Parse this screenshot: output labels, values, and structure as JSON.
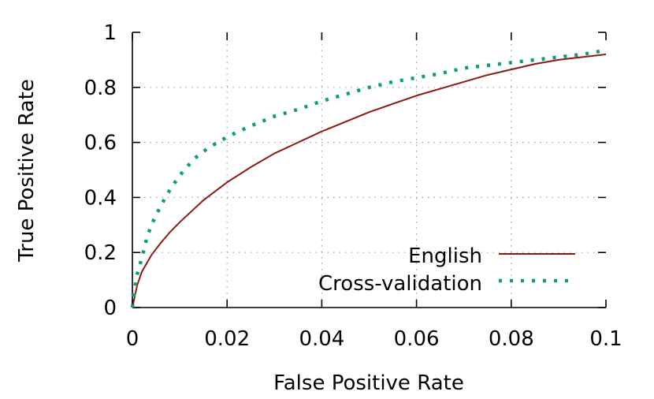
{
  "chart_data": {
    "type": "line",
    "title": "",
    "xlabel": "False Positive Rate",
    "ylabel": "True Positive Rate",
    "xlim": [
      0,
      0.1
    ],
    "ylim": [
      0,
      1
    ],
    "xticks": [
      "0",
      "0.02",
      "0.04",
      "0.06",
      "0.08",
      "0.1"
    ],
    "yticks": [
      "0",
      "0.2",
      "0.4",
      "0.6",
      "0.8",
      "1"
    ],
    "grid": true,
    "legend_position": "bottom-right",
    "series": [
      {
        "name": "English",
        "color": "#8b1a0e",
        "style": "solid",
        "points": [
          [
            0,
            0
          ],
          [
            0.001,
            0.08
          ],
          [
            0.002,
            0.13
          ],
          [
            0.004,
            0.19
          ],
          [
            0.006,
            0.235
          ],
          [
            0.008,
            0.275
          ],
          [
            0.01,
            0.31
          ],
          [
            0.015,
            0.39
          ],
          [
            0.02,
            0.455
          ],
          [
            0.025,
            0.51
          ],
          [
            0.03,
            0.56
          ],
          [
            0.035,
            0.6
          ],
          [
            0.04,
            0.64
          ],
          [
            0.045,
            0.675
          ],
          [
            0.05,
            0.71
          ],
          [
            0.055,
            0.74
          ],
          [
            0.06,
            0.77
          ],
          [
            0.065,
            0.795
          ],
          [
            0.07,
            0.82
          ],
          [
            0.075,
            0.845
          ],
          [
            0.08,
            0.865
          ],
          [
            0.085,
            0.885
          ],
          [
            0.09,
            0.9
          ],
          [
            0.095,
            0.91
          ],
          [
            0.1,
            0.92
          ]
        ]
      },
      {
        "name": "Cross-validation",
        "color": "#0f9e73",
        "style": "dotted",
        "points": [
          [
            0,
            0
          ],
          [
            0.0005,
            0.07
          ],
          [
            0.001,
            0.12
          ],
          [
            0.002,
            0.18
          ],
          [
            0.003,
            0.25
          ],
          [
            0.004,
            0.3
          ],
          [
            0.006,
            0.37
          ],
          [
            0.008,
            0.43
          ],
          [
            0.01,
            0.48
          ],
          [
            0.013,
            0.54
          ],
          [
            0.016,
            0.58
          ],
          [
            0.02,
            0.62
          ],
          [
            0.025,
            0.66
          ],
          [
            0.03,
            0.695
          ],
          [
            0.035,
            0.72
          ],
          [
            0.04,
            0.75
          ],
          [
            0.045,
            0.775
          ],
          [
            0.05,
            0.8
          ],
          [
            0.055,
            0.82
          ],
          [
            0.06,
            0.835
          ],
          [
            0.065,
            0.85
          ],
          [
            0.07,
            0.87
          ],
          [
            0.075,
            0.88
          ],
          [
            0.08,
            0.89
          ],
          [
            0.085,
            0.9
          ],
          [
            0.09,
            0.91
          ],
          [
            0.095,
            0.92
          ],
          [
            0.1,
            0.935
          ]
        ]
      }
    ]
  }
}
